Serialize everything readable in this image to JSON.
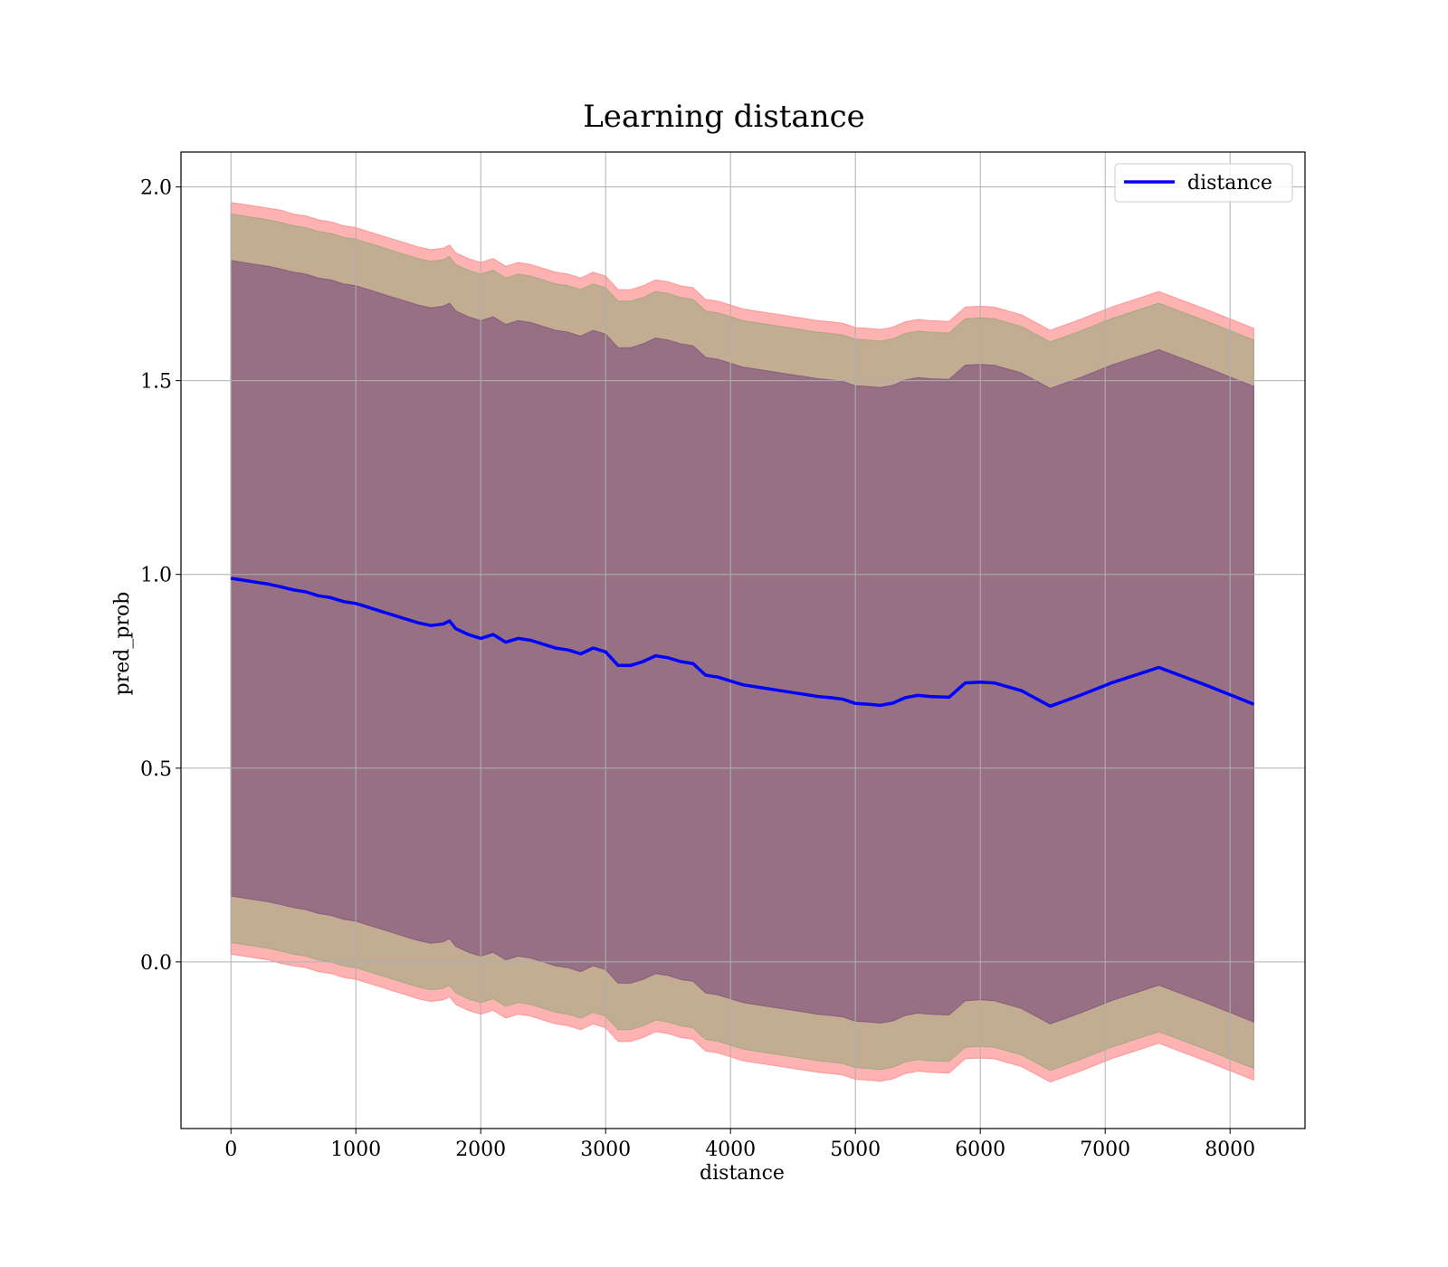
{
  "chart_data": {
    "type": "area",
    "title": "Learning distance",
    "xlabel": "distance",
    "ylabel": "pred_prob",
    "xlim": [
      -400,
      8600
    ],
    "ylim": [
      -0.43,
      2.09
    ],
    "xticks": [
      0,
      1000,
      2000,
      3000,
      4000,
      5000,
      6000,
      7000,
      8000
    ],
    "xtick_labels": [
      "0",
      "1000",
      "2000",
      "3000",
      "4000",
      "5000",
      "6000",
      "7000",
      "8000"
    ],
    "yticks": [
      0.0,
      0.5,
      1.0,
      1.5,
      2.0
    ],
    "ytick_labels": [
      "0.0",
      "0.5",
      "1.0",
      "1.5",
      "2.0"
    ],
    "grid": true,
    "legend": {
      "position": "top-right",
      "entries": [
        "distance"
      ]
    },
    "colors": {
      "line": "#0000ff",
      "outer_band": "#ff7f7f",
      "middle_band": "#8fa878",
      "inner_band": "#7a4a7a",
      "grid": "#b0b0b0"
    },
    "x": [
      0,
      100,
      200,
      300,
      400,
      500,
      600,
      700,
      800,
      900,
      1000,
      1100,
      1200,
      1300,
      1400,
      1500,
      1600,
      1700,
      1750,
      1800,
      1900,
      2000,
      2100,
      2200,
      2300,
      2400,
      2500,
      2600,
      2700,
      2800,
      2900,
      3000,
      3100,
      3200,
      3300,
      3400,
      3500,
      3600,
      3700,
      3800,
      3900,
      4000,
      4100,
      4200,
      4300,
      4400,
      4500,
      4600,
      4700,
      4800,
      4900,
      5000,
      5100,
      5200,
      5300,
      5400,
      5500,
      5600,
      5750,
      5880,
      6000,
      6110,
      6330,
      6560,
      6800,
      7050,
      7430,
      7800,
      8190
    ],
    "series": [
      {
        "name": "distance",
        "values": [
          0.99,
          0.985,
          0.98,
          0.975,
          0.968,
          0.96,
          0.955,
          0.945,
          0.94,
          0.93,
          0.925,
          0.915,
          0.905,
          0.895,
          0.885,
          0.875,
          0.868,
          0.872,
          0.88,
          0.86,
          0.845,
          0.835,
          0.845,
          0.825,
          0.835,
          0.83,
          0.82,
          0.81,
          0.805,
          0.795,
          0.81,
          0.8,
          0.765,
          0.765,
          0.775,
          0.79,
          0.785,
          0.775,
          0.77,
          0.74,
          0.735,
          0.725,
          0.715,
          0.71,
          0.705,
          0.7,
          0.695,
          0.69,
          0.685,
          0.682,
          0.678,
          0.667,
          0.665,
          0.662,
          0.668,
          0.682,
          0.688,
          0.685,
          0.683,
          0.72,
          0.722,
          0.72,
          0.7,
          0.66,
          0.688,
          0.72,
          0.76,
          0.715,
          0.665
        ]
      }
    ],
    "bands": [
      {
        "upper": [
          1.96,
          1.955,
          1.95,
          1.945,
          1.94,
          1.93,
          1.925,
          1.915,
          1.91,
          1.9,
          1.895,
          1.885,
          1.875,
          1.865,
          1.855,
          1.845,
          1.838,
          1.842,
          1.85,
          1.83,
          1.815,
          1.805,
          1.815,
          1.795,
          1.805,
          1.8,
          1.79,
          1.78,
          1.775,
          1.765,
          1.78,
          1.77,
          1.735,
          1.735,
          1.745,
          1.76,
          1.755,
          1.745,
          1.74,
          1.71,
          1.705,
          1.695,
          1.685,
          1.68,
          1.675,
          1.67,
          1.665,
          1.66,
          1.655,
          1.652,
          1.648,
          1.637,
          1.635,
          1.632,
          1.638,
          1.652,
          1.658,
          1.655,
          1.653,
          1.69,
          1.692,
          1.69,
          1.67,
          1.63,
          1.658,
          1.69,
          1.73,
          1.685,
          1.635
        ],
        "lower": [
          0.02,
          0.015,
          0.01,
          0.005,
          -0.004,
          -0.01,
          -0.015,
          -0.025,
          -0.03,
          -0.04,
          -0.045,
          -0.055,
          -0.065,
          -0.075,
          -0.085,
          -0.095,
          -0.102,
          -0.098,
          -0.09,
          -0.11,
          -0.125,
          -0.135,
          -0.125,
          -0.145,
          -0.135,
          -0.14,
          -0.15,
          -0.16,
          -0.165,
          -0.175,
          -0.16,
          -0.17,
          -0.205,
          -0.205,
          -0.195,
          -0.18,
          -0.185,
          -0.195,
          -0.2,
          -0.23,
          -0.235,
          -0.245,
          -0.255,
          -0.26,
          -0.265,
          -0.27,
          -0.275,
          -0.28,
          -0.285,
          -0.288,
          -0.292,
          -0.303,
          -0.305,
          -0.308,
          -0.302,
          -0.288,
          -0.282,
          -0.285,
          -0.287,
          -0.25,
          -0.248,
          -0.25,
          -0.27,
          -0.31,
          -0.282,
          -0.25,
          -0.21,
          -0.255,
          -0.305
        ]
      },
      {
        "upper": [
          1.93,
          1.925,
          1.92,
          1.915,
          1.908,
          1.9,
          1.895,
          1.885,
          1.88,
          1.87,
          1.865,
          1.855,
          1.845,
          1.835,
          1.825,
          1.815,
          1.808,
          1.812,
          1.82,
          1.8,
          1.785,
          1.775,
          1.785,
          1.765,
          1.775,
          1.77,
          1.76,
          1.75,
          1.745,
          1.735,
          1.75,
          1.74,
          1.705,
          1.705,
          1.715,
          1.73,
          1.725,
          1.715,
          1.71,
          1.68,
          1.675,
          1.665,
          1.655,
          1.65,
          1.645,
          1.64,
          1.635,
          1.63,
          1.625,
          1.622,
          1.618,
          1.607,
          1.605,
          1.602,
          1.608,
          1.622,
          1.628,
          1.625,
          1.623,
          1.66,
          1.662,
          1.66,
          1.64,
          1.6,
          1.628,
          1.66,
          1.7,
          1.655,
          1.605
        ],
        "lower": [
          0.05,
          0.045,
          0.04,
          0.035,
          0.028,
          0.02,
          0.015,
          0.005,
          0.0,
          -0.01,
          -0.015,
          -0.025,
          -0.035,
          -0.045,
          -0.055,
          -0.065,
          -0.072,
          -0.068,
          -0.06,
          -0.08,
          -0.095,
          -0.105,
          -0.095,
          -0.115,
          -0.105,
          -0.11,
          -0.12,
          -0.13,
          -0.135,
          -0.145,
          -0.13,
          -0.14,
          -0.175,
          -0.175,
          -0.165,
          -0.15,
          -0.155,
          -0.165,
          -0.17,
          -0.2,
          -0.205,
          -0.215,
          -0.225,
          -0.23,
          -0.235,
          -0.24,
          -0.245,
          -0.25,
          -0.255,
          -0.258,
          -0.262,
          -0.273,
          -0.275,
          -0.278,
          -0.272,
          -0.258,
          -0.252,
          -0.255,
          -0.257,
          -0.22,
          -0.218,
          -0.22,
          -0.24,
          -0.28,
          -0.252,
          -0.22,
          -0.18,
          -0.225,
          -0.275
        ]
      },
      {
        "upper": [
          1.81,
          1.805,
          1.8,
          1.795,
          1.788,
          1.78,
          1.775,
          1.765,
          1.76,
          1.75,
          1.745,
          1.735,
          1.725,
          1.715,
          1.705,
          1.695,
          1.688,
          1.692,
          1.7,
          1.68,
          1.665,
          1.655,
          1.665,
          1.645,
          1.655,
          1.65,
          1.64,
          1.63,
          1.625,
          1.615,
          1.63,
          1.62,
          1.585,
          1.585,
          1.595,
          1.61,
          1.605,
          1.595,
          1.59,
          1.56,
          1.555,
          1.545,
          1.535,
          1.53,
          1.525,
          1.52,
          1.515,
          1.51,
          1.505,
          1.502,
          1.498,
          1.487,
          1.485,
          1.482,
          1.488,
          1.502,
          1.508,
          1.505,
          1.503,
          1.54,
          1.542,
          1.54,
          1.52,
          1.48,
          1.508,
          1.54,
          1.58,
          1.535,
          1.485
        ],
        "lower": [
          0.17,
          0.165,
          0.16,
          0.155,
          0.148,
          0.14,
          0.135,
          0.125,
          0.12,
          0.11,
          0.105,
          0.095,
          0.085,
          0.075,
          0.065,
          0.055,
          0.048,
          0.052,
          0.06,
          0.04,
          0.025,
          0.015,
          0.025,
          0.005,
          0.015,
          0.01,
          0.0,
          -0.01,
          -0.015,
          -0.025,
          -0.01,
          -0.02,
          -0.055,
          -0.055,
          -0.045,
          -0.03,
          -0.035,
          -0.045,
          -0.05,
          -0.08,
          -0.085,
          -0.095,
          -0.105,
          -0.11,
          -0.115,
          -0.12,
          -0.125,
          -0.13,
          -0.135,
          -0.138,
          -0.142,
          -0.153,
          -0.155,
          -0.158,
          -0.152,
          -0.138,
          -0.132,
          -0.135,
          -0.137,
          -0.1,
          -0.098,
          -0.1,
          -0.12,
          -0.16,
          -0.132,
          -0.1,
          -0.06,
          -0.105,
          -0.155
        ]
      }
    ]
  }
}
